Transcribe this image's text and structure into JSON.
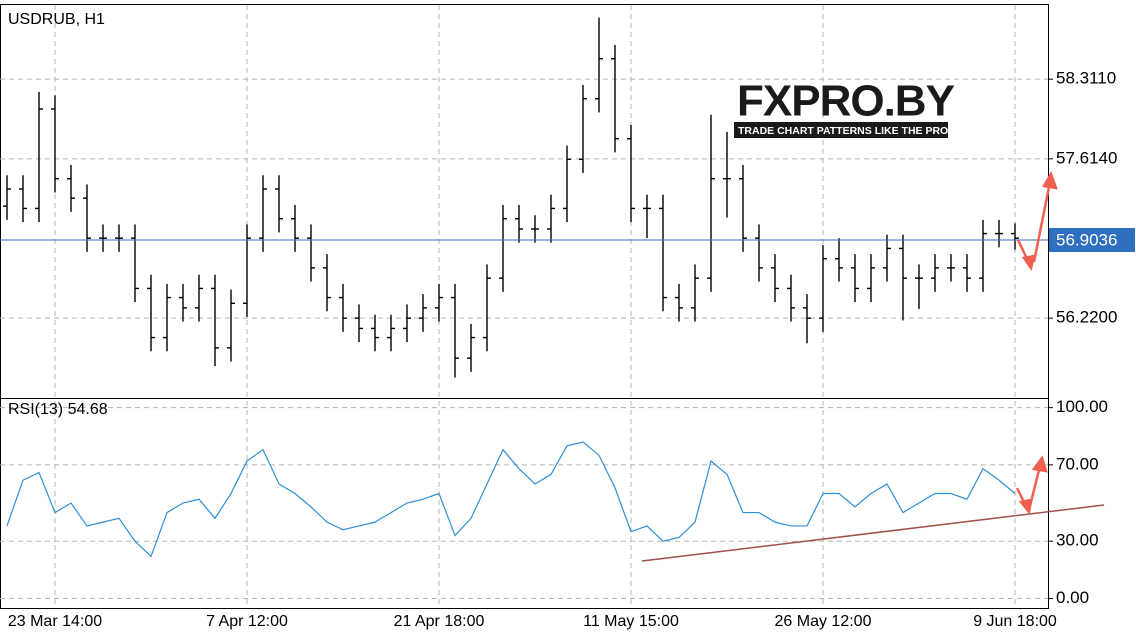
{
  "chart_data": [
    {
      "type": "ohlc",
      "title": "USDRUB, H1",
      "color": "#000000",
      "categories": [
        null,
        null,
        null,
        "23 Mar 14:00",
        null,
        null,
        null,
        null,
        null,
        null,
        null,
        null,
        null,
        null,
        null,
        "7 Apr 12:00",
        null,
        null,
        null,
        null,
        null,
        null,
        null,
        null,
        null,
        null,
        null,
        "21 Apr 18:00",
        null,
        null,
        null,
        null,
        null,
        null,
        null,
        null,
        null,
        null,
        null,
        "11 May 15:00",
        null,
        null,
        null,
        null,
        null,
        null,
        null,
        null,
        null,
        null,
        null,
        "26 May 12:00",
        null,
        null,
        null,
        null,
        null,
        null,
        null,
        null,
        null,
        null,
        null,
        "9 Jun 18:00"
      ],
      "open": [
        57.2,
        57.35,
        57.18,
        58.05,
        57.44,
        57.27,
        56.92,
        56.92,
        56.92,
        56.48,
        56.05,
        56.4,
        56.31,
        56.48,
        55.96,
        56.35,
        56.92,
        57.35,
        57.09,
        56.92,
        56.66,
        56.4,
        56.22,
        56.13,
        56.05,
        56.13,
        56.22,
        56.31,
        56.4,
        55.87,
        56.05,
        56.57,
        57.09,
        57.0,
        57.0,
        57.18,
        57.61,
        58.14,
        58.49,
        57.79,
        57.18,
        57.18,
        56.4,
        56.31,
        56.57,
        57.44,
        57.44,
        56.92,
        56.66,
        56.48,
        56.31,
        56.22,
        56.74,
        56.66,
        56.48,
        56.66,
        56.83,
        56.57,
        56.57,
        56.66,
        56.66,
        56.57,
        56.96,
        56.96
      ],
      "high": [
        57.47,
        57.47,
        58.2,
        58.17,
        57.56,
        57.39,
        57.04,
        57.04,
        57.04,
        56.6,
        56.52,
        56.52,
        56.6,
        56.6,
        56.47,
        57.04,
        57.47,
        57.47,
        57.21,
        57.04,
        56.78,
        56.52,
        56.34,
        56.25,
        56.25,
        56.34,
        56.43,
        56.52,
        56.52,
        56.17,
        56.69,
        57.21,
        57.21,
        57.12,
        57.3,
        57.73,
        58.26,
        58.85,
        58.61,
        57.91,
        57.3,
        57.3,
        56.52,
        56.69,
        58.0,
        57.85,
        57.56,
        57.04,
        56.78,
        56.6,
        56.43,
        56.86,
        56.92,
        56.78,
        56.78,
        56.95,
        56.95,
        56.69,
        56.78,
        56.78,
        56.78,
        57.08,
        57.08,
        57.05
      ],
      "low": [
        57.08,
        57.06,
        57.06,
        57.32,
        57.15,
        56.8,
        56.8,
        56.8,
        56.36,
        55.93,
        55.93,
        56.19,
        56.19,
        55.8,
        55.84,
        56.23,
        56.8,
        56.97,
        56.8,
        56.54,
        56.28,
        56.1,
        56.01,
        55.93,
        55.93,
        56.01,
        56.1,
        56.19,
        55.7,
        55.75,
        55.93,
        56.45,
        56.88,
        56.88,
        56.88,
        57.06,
        57.49,
        58.02,
        57.67,
        57.06,
        56.92,
        56.28,
        56.19,
        56.19,
        56.45,
        57.1,
        56.8,
        56.54,
        56.36,
        56.19,
        56.0,
        56.1,
        56.54,
        56.36,
        56.36,
        56.54,
        56.2,
        56.3,
        56.45,
        56.54,
        56.45,
        56.45,
        56.84,
        56.82
      ],
      "close": [
        57.35,
        57.18,
        58.05,
        57.44,
        57.27,
        56.92,
        56.92,
        56.92,
        56.48,
        56.05,
        56.4,
        56.31,
        56.48,
        55.96,
        56.35,
        56.92,
        57.35,
        57.09,
        56.92,
        56.66,
        56.4,
        56.22,
        56.13,
        56.05,
        56.13,
        56.22,
        56.31,
        56.4,
        55.87,
        56.05,
        56.57,
        57.09,
        57.0,
        57.0,
        57.18,
        57.61,
        58.14,
        58.49,
        57.79,
        57.18,
        57.18,
        56.4,
        56.31,
        56.57,
        57.44,
        57.44,
        56.92,
        56.66,
        56.48,
        56.31,
        56.22,
        56.74,
        56.66,
        56.48,
        56.66,
        56.83,
        56.57,
        56.57,
        56.66,
        56.66,
        56.57,
        56.96,
        56.96,
        56.92
      ],
      "ylim": [
        55.53,
        58.96
      ],
      "yticks": [
        {
          "value": 58.311,
          "label": "58.3110"
        },
        {
          "value": 57.614,
          "label": "57.6140"
        },
        {
          "value": 56.22,
          "label": "56.2200"
        }
      ],
      "last_price": 56.9036,
      "last_price_color": "#2f6fc0",
      "grid": true
    },
    {
      "type": "line",
      "title": "RSI(13) 54.68",
      "series": [
        {
          "color": "#2f8fd8",
          "values": [
            38,
            62,
            66,
            45,
            50,
            38,
            40,
            42,
            30,
            22,
            45,
            50,
            52,
            42,
            55,
            72,
            78,
            60,
            55,
            48,
            40,
            36,
            38,
            40,
            45,
            50,
            52,
            55,
            33,
            42,
            60,
            78,
            68,
            60,
            65,
            80,
            82,
            75,
            58,
            35,
            38,
            30,
            32,
            40,
            72,
            65,
            45,
            45,
            40,
            38,
            38,
            55,
            55,
            48,
            55,
            60,
            45,
            50,
            55,
            55,
            52,
            68,
            62,
            55
          ]
        }
      ],
      "ylim": [
        -5,
        104
      ],
      "yticks": [
        {
          "value": 100,
          "label": "100.00"
        },
        {
          "value": 70,
          "label": "70.00"
        },
        {
          "value": 30,
          "label": "30.00"
        },
        {
          "value": 0,
          "label": "0.00"
        }
      ],
      "grid": true
    }
  ],
  "logo": {
    "text": "FXPRO.BY",
    "tagline": "TRADE CHART PATTERNS LIKE THE PROS"
  }
}
